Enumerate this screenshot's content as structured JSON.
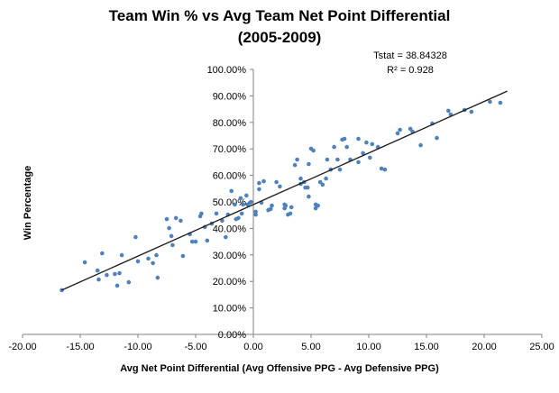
{
  "title": {
    "line1": "Team Win % vs Avg Team Net Point Differential",
    "line2": "(2005-2009)"
  },
  "annotations": {
    "tstat": "Tstat = 38.84328",
    "r_squared": "R² = 0.928"
  },
  "chart_data": {
    "type": "scatter",
    "title": "Team Win % vs Avg Team Net Point Differential (2005-2009)",
    "xlabel": "Avg Net Point Differential (Avg Offensive PPG - Avg Defensive PPG)",
    "ylabel": "Win Percentage",
    "xlim": [
      -20,
      25
    ],
    "ylim": [
      0,
      100
    ],
    "grid": false,
    "legend": "none",
    "marker_color": "#4F81BD",
    "axis_color": "#808080",
    "trendline": {
      "x1": -16.6,
      "y1": 16.7,
      "x2": 22.0,
      "y2": 91.8,
      "color": "#1a1a1a"
    },
    "x_ticks": [
      -20,
      -15,
      -10,
      -5,
      0,
      5,
      10,
      15,
      20,
      25
    ],
    "x_tick_labels": [
      "-20.00",
      "-15.00",
      "-10.00",
      "-5.00",
      "0.00",
      "5.00",
      "10.00",
      "15.00",
      "20.00",
      "25.00"
    ],
    "y_ticks": [
      0,
      10,
      20,
      30,
      40,
      50,
      60,
      70,
      80,
      90,
      100
    ],
    "y_tick_labels": [
      "0.00%",
      "10.00%",
      "20.00%",
      "30.00%",
      "40.00%",
      "50.00%",
      "60.00%",
      "70.00%",
      "80.00%",
      "90.00%",
      "100.00%"
    ],
    "points": [
      [
        -16.6,
        16.7
      ],
      [
        -14.6,
        27.2
      ],
      [
        -13.5,
        24.1
      ],
      [
        -13.4,
        20.7
      ],
      [
        -13.1,
        30.6
      ],
      [
        -12.7,
        22.4
      ],
      [
        -12.0,
        22.8
      ],
      [
        -11.8,
        18.4
      ],
      [
        -11.6,
        23.1
      ],
      [
        -11.4,
        29.9
      ],
      [
        -10.8,
        19.7
      ],
      [
        -10.2,
        36.7
      ],
      [
        -10.0,
        27.6
      ],
      [
        -9.1,
        28.6
      ],
      [
        -8.7,
        26.9
      ],
      [
        -8.4,
        29.9
      ],
      [
        -8.3,
        21.4
      ],
      [
        -7.5,
        43.5
      ],
      [
        -7.3,
        40.1
      ],
      [
        -7.1,
        37.1
      ],
      [
        -7.0,
        33.7
      ],
      [
        -6.7,
        43.9
      ],
      [
        -6.3,
        42.9
      ],
      [
        -6.1,
        29.6
      ],
      [
        -5.5,
        37.8
      ],
      [
        -5.3,
        35.0
      ],
      [
        -5.0,
        35.0
      ],
      [
        -4.6,
        44.6
      ],
      [
        -4.5,
        45.6
      ],
      [
        -4.2,
        40.5
      ],
      [
        -4.0,
        35.4
      ],
      [
        -3.6,
        41.8
      ],
      [
        -3.2,
        45.6
      ],
      [
        -2.7,
        42.9
      ],
      [
        -2.4,
        36.7
      ],
      [
        -2.2,
        45.2
      ],
      [
        -1.9,
        54.1
      ],
      [
        -1.6,
        49.0
      ],
      [
        -1.5,
        43.5
      ],
      [
        -1.3,
        43.9
      ],
      [
        -1.1,
        51.4
      ],
      [
        -1.0,
        45.6
      ],
      [
        -0.9,
        49.0
      ],
      [
        -0.6,
        52.4
      ],
      [
        -0.5,
        49.0
      ],
      [
        -0.3,
        49.7
      ],
      [
        -0.2,
        50.0
      ],
      [
        0.2,
        46.3
      ],
      [
        0.2,
        45.2
      ],
      [
        0.5,
        57.1
      ],
      [
        0.5,
        54.8
      ],
      [
        0.7,
        49.7
      ],
      [
        0.9,
        57.8
      ],
      [
        1.3,
        46.9
      ],
      [
        1.5,
        47.3
      ],
      [
        1.6,
        48.6
      ],
      [
        2.0,
        57.5
      ],
      [
        2.3,
        55.8
      ],
      [
        2.7,
        49.0
      ],
      [
        2.7,
        47.6
      ],
      [
        2.8,
        48.6
      ],
      [
        3.0,
        45.2
      ],
      [
        3.2,
        45.6
      ],
      [
        3.3,
        48.0
      ],
      [
        3.6,
        63.9
      ],
      [
        3.8,
        66.0
      ],
      [
        4.1,
        56.8
      ],
      [
        4.1,
        58.8
      ],
      [
        4.4,
        57.5
      ],
      [
        4.5,
        55.4
      ],
      [
        4.7,
        55.4
      ],
      [
        4.8,
        52.0
      ],
      [
        4.8,
        64.3
      ],
      [
        5.0,
        70.1
      ],
      [
        5.2,
        69.4
      ],
      [
        5.4,
        49.0
      ],
      [
        5.4,
        47.6
      ],
      [
        5.6,
        48.6
      ],
      [
        5.8,
        57.5
      ],
      [
        6.0,
        56.5
      ],
      [
        6.3,
        58.8
      ],
      [
        6.4,
        66.0
      ],
      [
        6.7,
        62.2
      ],
      [
        7.0,
        70.7
      ],
      [
        7.3,
        66.0
      ],
      [
        7.5,
        62.2
      ],
      [
        7.7,
        73.5
      ],
      [
        7.9,
        73.8
      ],
      [
        8.1,
        70.7
      ],
      [
        8.4,
        66.0
      ],
      [
        9.1,
        65.0
      ],
      [
        9.1,
        73.8
      ],
      [
        9.5,
        68.4
      ],
      [
        9.8,
        72.4
      ],
      [
        10.1,
        66.7
      ],
      [
        10.3,
        71.8
      ],
      [
        10.8,
        70.7
      ],
      [
        11.1,
        62.6
      ],
      [
        11.4,
        62.2
      ],
      [
        12.5,
        75.9
      ],
      [
        12.7,
        77.2
      ],
      [
        13.6,
        77.6
      ],
      [
        13.8,
        76.5
      ],
      [
        14.5,
        71.4
      ],
      [
        15.5,
        79.6
      ],
      [
        15.9,
        74.1
      ],
      [
        16.9,
        84.4
      ],
      [
        17.1,
        83.0
      ],
      [
        18.3,
        84.7
      ],
      [
        18.9,
        84.0
      ],
      [
        20.5,
        87.8
      ],
      [
        21.4,
        87.4
      ]
    ]
  }
}
